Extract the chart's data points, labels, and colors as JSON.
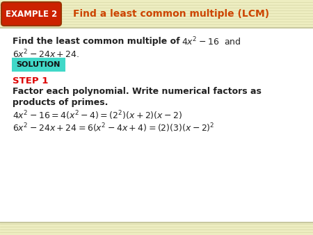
{
  "bg_color_header": "#f0f0c8",
  "bg_color_body": "#ffffff",
  "bg_color_bottom": "#f5f5dc",
  "header_label": "EXAMPLE 2",
  "header_label_bg": "#cc2200",
  "header_label_text": "#ffffff",
  "header_title": "Find a least common multiple (LCM)",
  "header_title_color": "#cc4400",
  "solution_bg": "#40d8c8",
  "solution_text": "SOLUTION",
  "step1_color": "#dd0000",
  "step1_text": "STEP 1",
  "line1_bold": "Find the least common multiple of ",
  "line1_math": "$4x^2 -16$",
  "line1_tail": " and",
  "line2_math": "$6x^2 -24x + 24.$",
  "factor_line1": "Factor each polynomial. Write numerical factors as",
  "factor_line2": "products of primes.",
  "eq1": "$4x^2 - 16 = 4(x^2 - 4) = (2^2)(x + 2)(x - 2)$",
  "eq2": "$6x^2 - 24x + 24 = 6(x^2 - 4x + 4) = (2)(3)(x - 2)^2$",
  "text_color": "#222222"
}
